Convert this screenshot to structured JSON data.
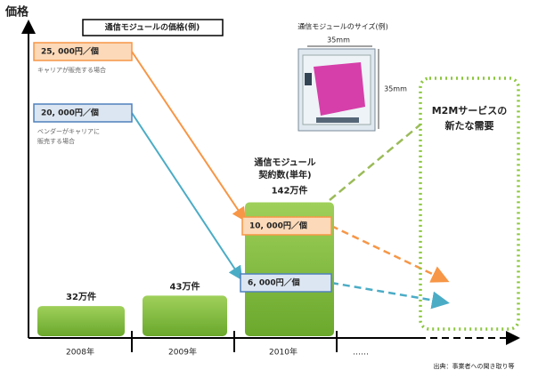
{
  "axis_label": "価格",
  "price_title": "通信モジュールの価格(例)",
  "prices": [
    {
      "label": "25, 000円／個",
      "note": [
        "キャリアが販売する場合"
      ]
    },
    {
      "label": "20, 000円／個",
      "note": [
        "ベンダーがキャリアに",
        "販売する場合"
      ]
    },
    {
      "label": "10, 000円／個"
    },
    {
      "label": "6, 000円／個"
    }
  ],
  "module_size": {
    "title": "通信モジュールのサイズ(例)",
    "width": "35mm",
    "height": "35mm"
  },
  "contracts_title": [
    "通信モジュール",
    "契約数(単年)"
  ],
  "bars": [
    {
      "year": "2008年",
      "value": 32,
      "label": "32万件"
    },
    {
      "year": "2009年",
      "value": 43,
      "label": "43万件"
    },
    {
      "year": "2010年",
      "value": 142,
      "label": "142万件"
    }
  ],
  "future_label": "……",
  "demand": [
    "M2Mサービスの",
    "新たな需要"
  ],
  "source": "出典：事業者への聞き取り等"
}
